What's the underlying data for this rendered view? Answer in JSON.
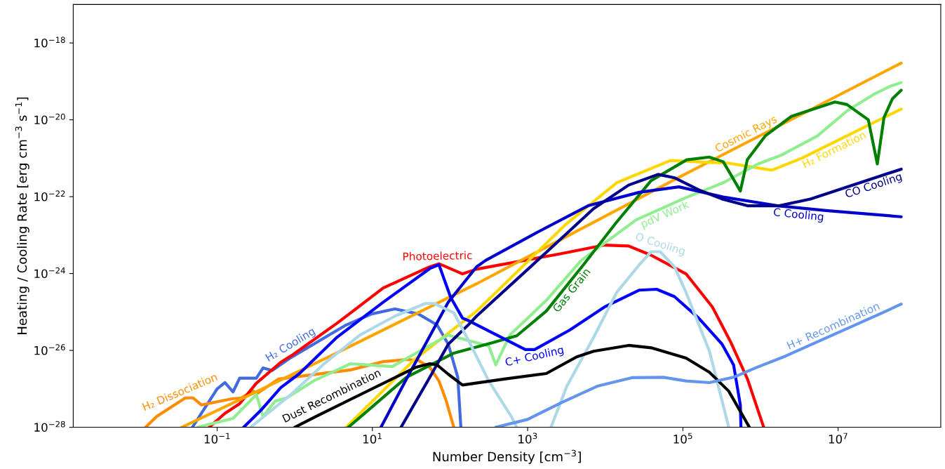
{
  "chart_data": {
    "type": "line",
    "log": "xy",
    "line_style": "solid",
    "xlabel": "Number Density [cm$^{−3}$]",
    "ylabel": "Heating / Cooling Rate [erg cm$^{−3}$ s$^{−1}$]",
    "xlim": [
      0.0014,
      210000000.0
    ],
    "ylim": [
      1e-28,
      1e-17
    ],
    "xticks": [
      {
        "value": 0.1,
        "label": "10$^{−1}$"
      },
      {
        "value": 10,
        "label": "10$^{1}$"
      },
      {
        "value": 1000,
        "label": "10$^{3}$"
      },
      {
        "value": 100000,
        "label": "10$^{5}$"
      },
      {
        "value": 10000000,
        "label": "10$^{7}$"
      }
    ],
    "yticks": [
      {
        "value": 1e-28,
        "label": "10$^{−28}$"
      },
      {
        "value": 1e-26,
        "label": "10$^{−26}$"
      },
      {
        "value": 1e-24,
        "label": "10$^{−24}$"
      },
      {
        "value": 1e-22,
        "label": "10$^{−22}$"
      },
      {
        "value": 1e-20,
        "label": "10$^{−20}$"
      },
      {
        "value": 1e-18,
        "label": "10$^{−18}$"
      }
    ],
    "series": [
      {
        "name": "H₂ Cooling",
        "color": "#4169e1",
        "x": [
          0.048,
          0.1,
          0.126,
          0.16,
          0.195,
          0.32,
          0.39,
          0.51,
          0.87,
          4.6,
          9.8,
          19.5,
          39,
          68,
          95,
          126,
          138
        ],
        "values": [
          1e-28,
          1e-27,
          1.45e-27,
          8.3e-28,
          1.9e-27,
          1.9e-27,
          3.5e-27,
          3e-27,
          6.3e-27,
          4.6e-26,
          8.9e-26,
          1.2e-25,
          8.9e-26,
          4.6e-26,
          1.45e-26,
          2e-27,
          1e-28
        ]
      },
      {
        "name": "H₂ Dissociation",
        "color": "#ff8c00",
        "x": [
          0.012,
          0.0166,
          0.039,
          0.049,
          0.063,
          0.155,
          0.204,
          0.29,
          0.33,
          0.62,
          5.2,
          13.8,
          27.5,
          39,
          55,
          72,
          89,
          112
        ],
        "values": [
          1e-28,
          1.9e-28,
          5.8e-28,
          5.8e-28,
          3.8e-28,
          5.5e-28,
          5.8e-28,
          8.7e-28,
          7.6e-28,
          1.8e-27,
          3.1e-27,
          5.1e-27,
          5.8e-27,
          5.5e-27,
          3.6e-27,
          1.6e-27,
          5e-28,
          1e-28
        ]
      },
      {
        "name": "Photoelectric",
        "color": "#ff0000",
        "x": [
          0.079,
          0.126,
          0.195,
          0.32,
          0.66,
          0.95,
          3.5,
          13.8,
          55,
          72,
          145,
          220,
          2500,
          9800,
          20000,
          39000,
          110000,
          240000,
          410000,
          680000,
          1100000
        ],
        "values": [
          1e-28,
          2.3e-28,
          4.1e-28,
          1.4e-27,
          4.9e-27,
          7.8e-27,
          5.1e-26,
          4.2e-25,
          1.5e-24,
          1.8e-24,
          9.8e-25,
          1.3e-24,
          3.2e-24,
          5.5e-24,
          5.2e-24,
          3e-24,
          9.8e-25,
          1.35e-25,
          1.7e-26,
          1.8e-27,
          1e-28
        ]
      },
      {
        "name": "Cosmic Rays",
        "color": "#ffa500",
        "x": [
          0.035,
          0.195,
          3.2,
          220,
          100000,
          65000000
        ],
        "values": [
          1e-28,
          5.2e-28,
          7.9e-27,
          5.4e-25,
          3.6e-22,
          3e-19
        ]
      },
      {
        "name": "H₂ Formation",
        "color": "#ffd700",
        "x": [
          4.6,
          34,
          220,
          3100,
          14000,
          69000,
          390000,
          1400000,
          3400000,
          25000000,
          65000000
        ],
        "values": [
          1e-28,
          5.5e-27,
          1.05e-25,
          1.9e-23,
          2.3e-22,
          8.7e-22,
          7.4e-22,
          4.9e-22,
          1e-21,
          7.4e-21,
          1.9e-20
        ]
      },
      {
        "name": "pdV Work",
        "color": "#90ee90",
        "x": [
          0.056,
          0.16,
          0.32,
          0.39,
          0.56,
          0.79,
          1.74,
          5.2,
          18,
          95,
          316,
          389,
          589,
          1740,
          4900,
          25000,
          110000,
          330000,
          930000,
          1900000,
          5400000,
          13000000,
          30000000,
          48000000,
          65000000
        ],
        "values": [
          1e-28,
          1.7e-28,
          7.1e-28,
          1.9e-28,
          4.8e-28,
          5.8e-28,
          1.6e-27,
          4.5e-27,
          3.8e-27,
          2.5e-26,
          1.3e-26,
          4.2e-27,
          2.5e-26,
          2e-25,
          2.2e-24,
          2.5e-23,
          9.5e-23,
          2.3e-22,
          7.1e-22,
          1.23e-21,
          3.8e-21,
          1.7e-20,
          4.8e-20,
          7.6e-20,
          9.3e-20
        ]
      },
      {
        "name": "Gas Grain",
        "color": "#008000",
        "x": [
          4.9,
          27.5,
          112,
          355,
          724,
          1738,
          5248,
          13800,
          38900,
          112000,
          219000,
          331000,
          407000,
          550000,
          676000,
          1150000,
          2500000,
          9100000,
          13000000,
          24500000,
          32000000,
          39000000,
          50000000,
          65000000
        ],
        "values": [
          1e-28,
          2e-27,
          8.5e-27,
          1.6e-26,
          2.4e-26,
          1.05e-25,
          1.7e-24,
          2.1e-23,
          2.6e-22,
          9.1e-22,
          1.07e-21,
          8.1e-22,
          4e-22,
          1.4e-22,
          9.1e-22,
          3.8e-21,
          1.23e-20,
          2.9e-20,
          2.5e-20,
          1e-20,
          7.1e-22,
          1.15e-20,
          3.5e-20,
          5.9e-20
        ]
      },
      {
        "name": "C+ Cooling",
        "color": "#0000ff",
        "x": [
          0.22,
          0.38,
          0.66,
          1.15,
          3.5,
          13.8,
          55,
          72,
          102,
          145,
          178,
          933,
          1230,
          3500,
          9800,
          27500,
          46000,
          78000,
          160000,
          320000,
          450000,
          550000,
          560000
        ],
        "values": [
          1e-28,
          3e-28,
          1.07e-27,
          2.5e-27,
          2.2e-26,
          1.8e-25,
          1.35e-24,
          1.7e-24,
          2.4e-25,
          6.9e-26,
          5.8e-26,
          1.05e-26,
          1.05e-26,
          3.4e-26,
          1.35e-25,
          3.7e-25,
          3.9e-25,
          2.5e-25,
          6.9e-26,
          1.45e-26,
          4.2e-27,
          3.8e-28,
          1e-28
        ]
      },
      {
        "name": "C Cooling",
        "color": "#0000cd",
        "x": [
          12.9,
          27.5,
          95,
          220,
          288,
          1350,
          6000,
          27500,
          89000,
          330000,
          1660000,
          7400000,
          65000000
        ],
        "values": [
          1e-28,
          1.8e-27,
          1.8e-25,
          1.5e-24,
          2.2e-24,
          1.2e-23,
          5.8e-23,
          1.3e-22,
          1.8e-22,
          9.8e-23,
          5.8e-23,
          4.3e-23,
          3e-23
        ]
      },
      {
        "name": "CO Cooling",
        "color": "#00008b",
        "x": [
          23.4,
          55,
          95,
          170,
          220,
          2000,
          7100,
          20000,
          48000,
          78000,
          160000,
          320000,
          680000,
          1740000,
          4400000,
          11000000,
          65000000
        ],
        "values": [
          1e-28,
          2e-27,
          1.45e-26,
          4.5e-26,
          7.8e-26,
          4.6e-24,
          4.9e-23,
          2e-22,
          3.8e-22,
          3.1e-22,
          1.5e-22,
          8.7e-23,
          5.8e-23,
          5.8e-23,
          8.7e-23,
          1.6e-22,
          5.2e-22
        ]
      },
      {
        "name": "O Cooling",
        "color": "#add8e6",
        "x": [
          0.27,
          0.87,
          2.45,
          6.9,
          19.5,
          48,
          63,
          112,
          170,
          316,
          617,
          724,
          1260,
          2000,
          3200,
          7100,
          14000,
          27500,
          39000,
          51000,
          78000,
          110000,
          220000,
          390000
        ],
        "values": [
          1e-28,
          6.8e-28,
          4.7e-27,
          2.5e-26,
          7.8e-26,
          1.66e-25,
          1.66e-25,
          9.5e-26,
          1.95e-26,
          1.6e-27,
          1.9e-28,
          1e-28,
          null,
          1e-28,
          1.17e-27,
          2.2e-26,
          3.2e-25,
          1.7e-24,
          3.7e-24,
          3.7e-24,
          1.5e-24,
          3.2e-25,
          9.5e-27,
          1e-28
        ]
      },
      {
        "name": "Dust Recombination",
        "color": "#000000",
        "x": [
          1.0,
          1.86,
          36,
          55,
          68,
          95,
          145,
          500,
          1740,
          4300,
          7100,
          20000,
          39000,
          110000,
          220000,
          390000,
          720000
        ],
        "values": [
          1e-28,
          1.9e-28,
          3.6e-27,
          4.5e-27,
          4.2e-27,
          2.4e-27,
          1.26e-27,
          1.8e-27,
          2.5e-27,
          6.8e-27,
          9.5e-27,
          1.35e-26,
          1.17e-26,
          6.3e-27,
          2.7e-27,
          8.7e-28,
          1e-28
        ]
      },
      {
        "name": "H+ Recombination",
        "color": "#6495ed",
        "x": [
          389,
          1000,
          2800,
          7900,
          22000,
          56000,
          110000,
          220000,
          450000,
          890000,
          2100000,
          37000000,
          65000000
        ],
        "values": [
          1e-28,
          1.6e-28,
          4.5e-28,
          1.17e-27,
          1.95e-27,
          2e-27,
          1.6e-27,
          1.45e-27,
          2e-27,
          3.6e-27,
          7.1e-27,
          9.5e-26,
          1.6e-25
        ]
      }
    ]
  }
}
